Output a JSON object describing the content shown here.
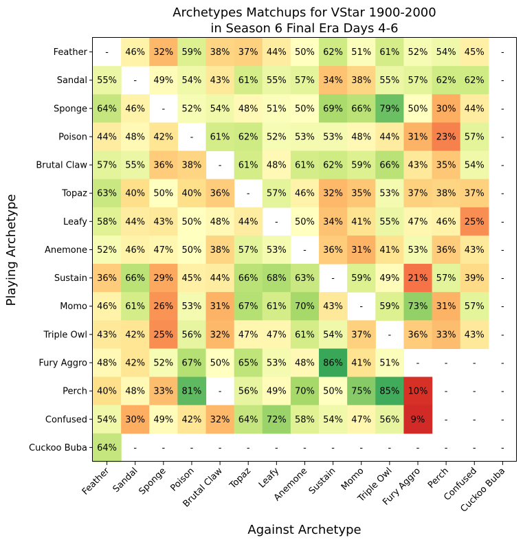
{
  "chart_data": {
    "type": "heatmap",
    "title_lines": [
      "Archetypes Matchups for VStar 1900-2000",
      "in Season 6 Final Era Days 4-6"
    ],
    "xlabel": "Against Archetype",
    "ylabel": "Playing Archetype",
    "x_categories": [
      "Feather",
      "Sandal",
      "Sponge",
      "Poison",
      "Brutal Claw",
      "Topaz",
      "Leafy",
      "Anemone",
      "Sustain",
      "Momo",
      "Triple Owl",
      "Fury Aggro",
      "Perch",
      "Confused",
      "Cuckoo Buba"
    ],
    "y_categories": [
      "Feather",
      "Sandal",
      "Sponge",
      "Poison",
      "Brutal Claw",
      "Topaz",
      "Leafy",
      "Anemone",
      "Sustain",
      "Momo",
      "Triple Owl",
      "Fury Aggro",
      "Perch",
      "Confused",
      "Cuckoo Buba"
    ],
    "missing_label": "-",
    "value_suffix": "%",
    "color_scale": "RdYlGn",
    "values": [
      [
        null,
        46,
        32,
        59,
        38,
        37,
        44,
        50,
        62,
        51,
        61,
        52,
        54,
        45,
        null
      ],
      [
        55,
        null,
        49,
        54,
        43,
        61,
        55,
        57,
        34,
        38,
        55,
        57,
        62,
        62,
        null
      ],
      [
        64,
        46,
        null,
        52,
        54,
        48,
        51,
        50,
        69,
        66,
        79,
        50,
        30,
        44,
        null
      ],
      [
        44,
        48,
        42,
        null,
        61,
        62,
        52,
        53,
        53,
        48,
        44,
        31,
        23,
        57,
        null
      ],
      [
        57,
        55,
        36,
        38,
        null,
        61,
        48,
        61,
        62,
        59,
        66,
        43,
        35,
        54,
        null
      ],
      [
        63,
        40,
        50,
        40,
        36,
        null,
        57,
        46,
        32,
        35,
        53,
        37,
        38,
        37,
        null
      ],
      [
        58,
        44,
        43,
        50,
        48,
        44,
        null,
        50,
        34,
        41,
        55,
        47,
        46,
        25,
        null
      ],
      [
        52,
        46,
        47,
        50,
        38,
        57,
        53,
        null,
        36,
        31,
        41,
        53,
        36,
        43,
        null
      ],
      [
        36,
        66,
        29,
        45,
        44,
        66,
        68,
        63,
        null,
        59,
        49,
        21,
        57,
        39,
        null
      ],
      [
        46,
        61,
        26,
        53,
        31,
        67,
        61,
        70,
        43,
        null,
        59,
        73,
        31,
        57,
        null
      ],
      [
        43,
        42,
        25,
        56,
        32,
        47,
        47,
        61,
        54,
        37,
        null,
        36,
        33,
        43,
        null
      ],
      [
        48,
        42,
        52,
        67,
        50,
        65,
        53,
        48,
        86,
        41,
        51,
        null,
        null,
        null,
        null
      ],
      [
        40,
        48,
        33,
        81,
        null,
        56,
        49,
        70,
        50,
        75,
        85,
        10,
        null,
        null,
        null
      ],
      [
        54,
        30,
        49,
        42,
        32,
        64,
        72,
        58,
        54,
        47,
        56,
        9,
        null,
        null,
        null
      ],
      [
        64,
        null,
        null,
        null,
        null,
        null,
        null,
        null,
        null,
        null,
        null,
        null,
        null,
        null,
        null
      ]
    ]
  }
}
